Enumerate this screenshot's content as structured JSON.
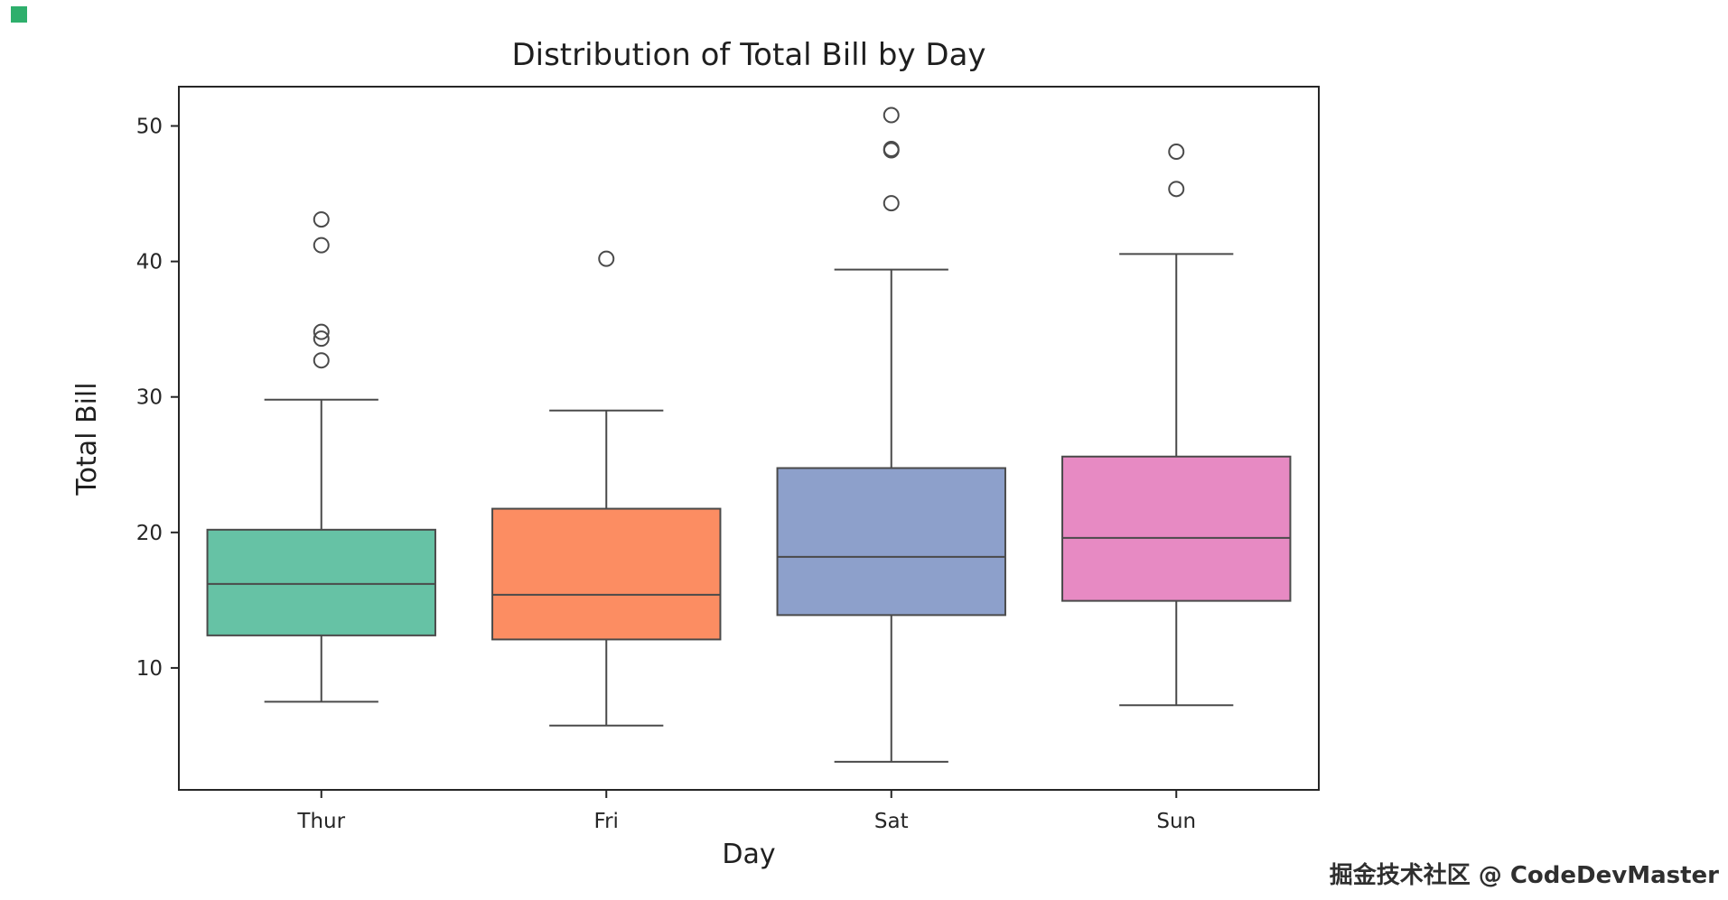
{
  "figure": {
    "background": "#ffffff",
    "corner_marker_color": "#2eaf6c"
  },
  "watermark": {
    "text": "掘金技术社区 @ CodeDevMaster"
  },
  "chart_data": {
    "type": "box",
    "title": "Distribution of Total Bill by Day",
    "xlabel": "Day",
    "ylabel": "Total Bill",
    "categories": [
      "Thur",
      "Fri",
      "Sat",
      "Sun"
    ],
    "yticks": [
      10,
      20,
      30,
      40,
      50
    ],
    "ylim": [
      1.0,
      52.9
    ],
    "grid": false,
    "legend": "none",
    "axis_color": "#262626",
    "edge_color": "#4a4a4a",
    "series": [
      {
        "category": "Thur",
        "color": "#66c2a5",
        "whisker_low": 7.5,
        "q1": 12.4,
        "median": 16.2,
        "q3": 20.2,
        "whisker_high": 29.8,
        "outliers": [
          32.7,
          34.3,
          34.8,
          41.2,
          43.1
        ]
      },
      {
        "category": "Fri",
        "color": "#fc8d62",
        "whisker_low": 5.75,
        "q1": 12.1,
        "median": 15.4,
        "q3": 21.75,
        "whisker_high": 29.0,
        "outliers": [
          40.2
        ]
      },
      {
        "category": "Sat",
        "color": "#8da0cb",
        "whisker_low": 3.07,
        "q1": 13.9,
        "median": 18.2,
        "q3": 24.75,
        "whisker_high": 39.4,
        "outliers": [
          44.3,
          48.2,
          48.3,
          50.8
        ]
      },
      {
        "category": "Sun",
        "color": "#e78ac3",
        "whisker_low": 7.25,
        "q1": 14.95,
        "median": 19.6,
        "q3": 25.6,
        "whisker_high": 40.55,
        "outliers": [
          45.35,
          48.1
        ]
      }
    ]
  }
}
